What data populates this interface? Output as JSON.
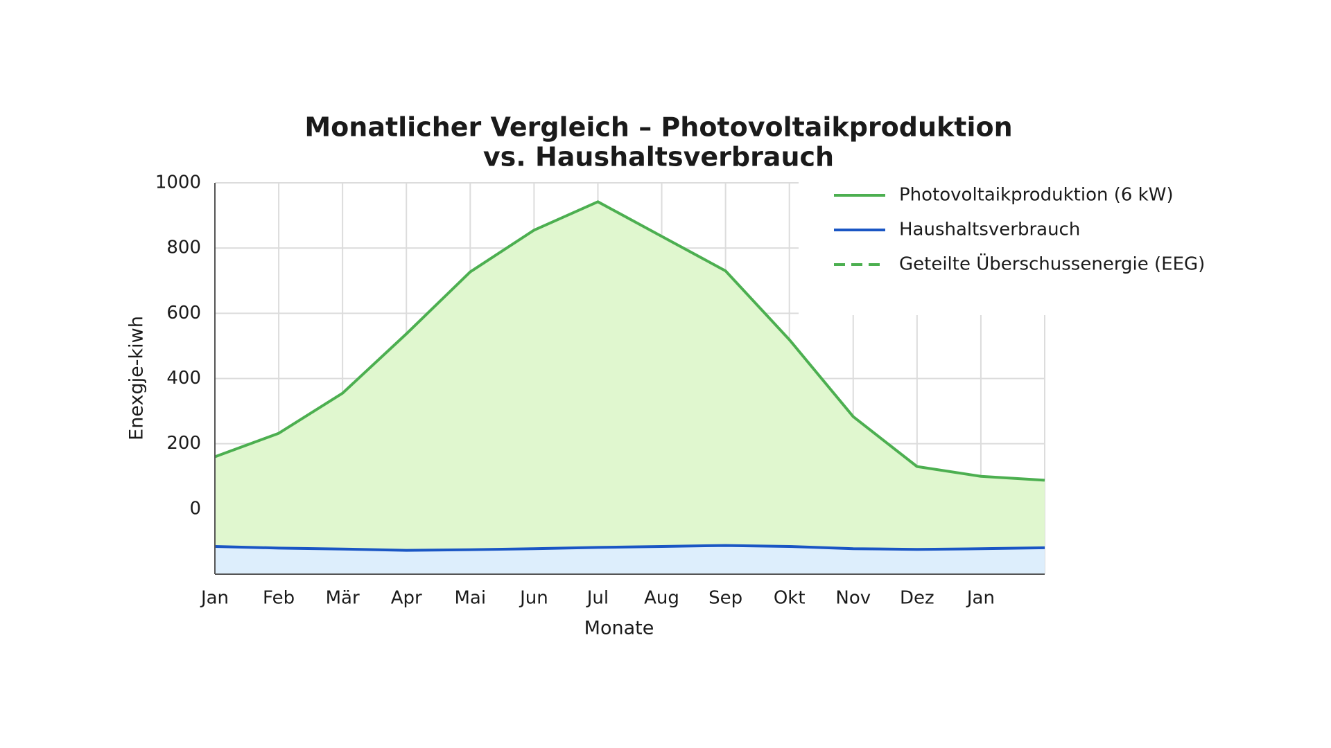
{
  "chart_data": {
    "type": "line",
    "title": [
      "Monatlicher Vergleich – Photovoltaikproduktion",
      "vs. Haushaltsverbrauch"
    ],
    "x_label": "Monate",
    "y_label": "Enexgje-kiwh",
    "categories": [
      "Jan",
      "Feb",
      "Mär",
      "Apr",
      "Mai",
      "Jun",
      "Jul",
      "Aug",
      "Sep",
      "Okt",
      "Nov",
      "Dez",
      "Jan",
      null
    ],
    "series": [
      {
        "name": "Photovoltaikproduktion (6 kW)",
        "color": "#4caf50",
        "fill": "#e0f7cf",
        "dashed": false,
        "values": [
          160,
          232,
          355,
          537,
          727,
          855,
          942,
          836,
          730,
          519,
          283,
          130,
          100,
          88
        ]
      },
      {
        "name": "Haushaltsverbrauch",
        "color": "#1a56c4",
        "fill": "#ddeefc",
        "dashed": false,
        "values": [
          -115,
          -120,
          -123,
          -127,
          -125,
          -122,
          -118,
          -115,
          -112,
          -115,
          -122,
          -124,
          -122,
          -119
        ]
      },
      {
        "name": "Geteilte Überschussenergie (EEG)",
        "color": "#4caf50",
        "dashed": true,
        "values": [
          null,
          null,
          null,
          null,
          null,
          null,
          null,
          null,
          null,
          null,
          null,
          null,
          null,
          null
        ]
      }
    ],
    "ylim": [
      -200,
      1000
    ],
    "yticks": [
      0,
      200,
      400,
      600,
      800,
      1000
    ],
    "grid": true,
    "legend": "upper right"
  }
}
